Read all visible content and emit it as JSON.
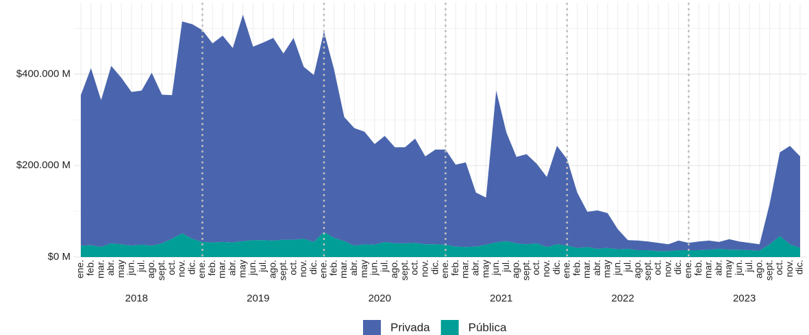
{
  "chart_data": {
    "type": "stacked_area",
    "categories": [
      "ene.",
      "feb.",
      "mar.",
      "abr.",
      "may",
      "jun.",
      "jul.",
      "ago.",
      "sept.",
      "oct.",
      "nov.",
      "dic.",
      "ene.",
      "feb.",
      "mar.",
      "abr.",
      "may",
      "jun.",
      "jul.",
      "ago.",
      "sept.",
      "oct.",
      "nov.",
      "dic.",
      "ene.",
      "feb.",
      "mar.",
      "abr.",
      "may",
      "jun.",
      "jul.",
      "ago.",
      "sept.",
      "oct.",
      "nov.",
      "dic.",
      "ene.",
      "feb.",
      "mar.",
      "abr.",
      "may",
      "jun.",
      "jul.",
      "ago.",
      "sept.",
      "oct.",
      "nov.",
      "dic.",
      "ene.",
      "feb.",
      "mar.",
      "abr.",
      "may",
      "jun.",
      "jul.",
      "ago.",
      "sept.",
      "oct.",
      "nov.",
      "dic.",
      "ene.",
      "feb.",
      "mar.",
      "abr.",
      "may",
      "jun.",
      "jul.",
      "ago.",
      "sept.",
      "oct.",
      "nov.",
      "dic."
    ],
    "years": [
      "2018",
      "2019",
      "2020",
      "2021",
      "2022",
      "2023"
    ],
    "series": [
      {
        "name": "Pública",
        "color": "#009e96",
        "values": [
          25000,
          26000,
          22000,
          30000,
          28000,
          25000,
          27000,
          25000,
          30000,
          40000,
          52000,
          40000,
          33000,
          32000,
          33000,
          32000,
          35000,
          37000,
          37000,
          36000,
          38000,
          38000,
          40000,
          33000,
          55000,
          42000,
          35000,
          25000,
          28000,
          27000,
          33000,
          30000,
          30000,
          31000,
          28000,
          28000,
          27000,
          23000,
          22000,
          23000,
          27000,
          32000,
          35000,
          30000,
          28000,
          30000,
          22000,
          28000,
          25000,
          20000,
          22000,
          18000,
          20000,
          17000,
          18000,
          15000,
          15000,
          13000,
          13000,
          15000,
          15000,
          15000,
          16000,
          18000,
          16000,
          16000,
          15000,
          14000,
          28000,
          46000,
          28000,
          20000
        ]
      },
      {
        "name": "Privada",
        "color": "#4a65ad",
        "values": [
          329000,
          387000,
          321000,
          388000,
          364000,
          336000,
          337000,
          378000,
          325000,
          314000,
          463000,
          469000,
          463000,
          435000,
          451000,
          425000,
          495000,
          423000,
          432000,
          443000,
          407000,
          441000,
          376000,
          365000,
          438000,
          368000,
          271000,
          257000,
          246000,
          220000,
          232000,
          210000,
          210000,
          228000,
          192000,
          207000,
          208000,
          179000,
          185000,
          118000,
          103000,
          332000,
          238000,
          189000,
          197000,
          174000,
          153000,
          215000,
          189000,
          121000,
          77000,
          84000,
          76000,
          44000,
          19000,
          21000,
          19000,
          18000,
          15000,
          21000,
          16000,
          19000,
          20000,
          15000,
          23000,
          18000,
          16000,
          14000,
          89000,
          183000,
          215000,
          200000
        ]
      }
    ],
    "legend_order": [
      1,
      0
    ],
    "ylim": [
      0,
      550000
    ],
    "yticks": [
      {
        "value": 0,
        "label": "$0 M"
      },
      {
        "value": 200000,
        "label": "$200.000 M"
      },
      {
        "value": 400000,
        "label": "$400.000 M"
      }
    ],
    "grid": true
  }
}
